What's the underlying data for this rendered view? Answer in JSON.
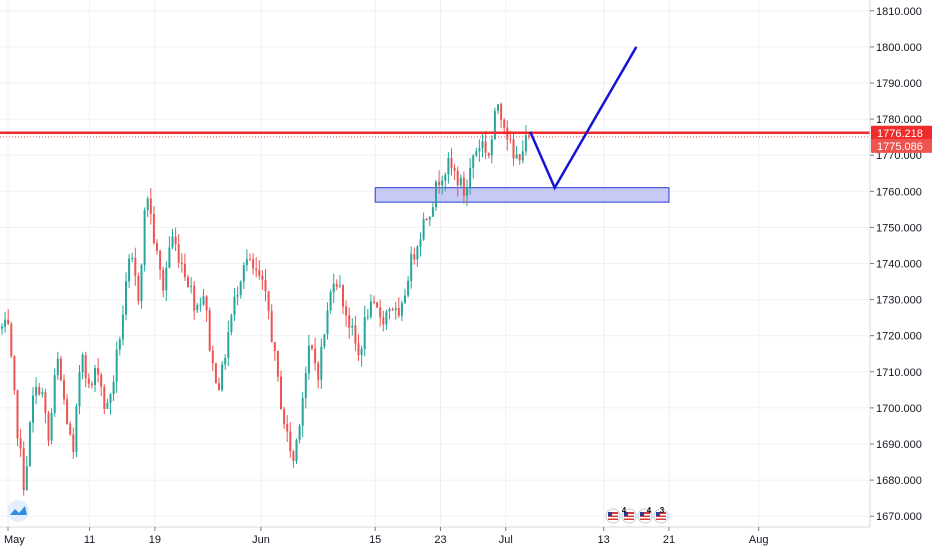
{
  "chart_data": {
    "type": "candlestick",
    "symbol": "",
    "xlim": [
      "2020-05-01",
      "2020-08-01"
    ],
    "ylim": [
      1667,
      1813
    ],
    "grid": true,
    "y_ticks": [
      1670,
      1680,
      1690,
      1700,
      1710,
      1720,
      1730,
      1740,
      1750,
      1760,
      1770,
      1780,
      1790,
      1800,
      1810
    ],
    "y_tick_labels": [
      "1670.000",
      "1680.000",
      "1690.000",
      "1700.000",
      "1710.000",
      "1720.000",
      "1730.000",
      "1740.000",
      "1750.000",
      "1760.000",
      "1770.000",
      "1780.000",
      "1790.000",
      "1800.000",
      "1810.000"
    ],
    "x_ticks": [
      "2020-05-01",
      "2020-05-11",
      "2020-05-19",
      "2020-06-01",
      "2020-06-15",
      "2020-06-23",
      "2020-07-01",
      "2020-07-13",
      "2020-07-21",
      "2020-08-01"
    ],
    "x_tick_labels": [
      "May",
      "11",
      "19",
      "Jun",
      "15",
      "23",
      "Jul",
      "13",
      "21",
      "Aug"
    ],
    "up_color": "#26a69a",
    "down_color": "#ef5350",
    "shape_points": [
      [
        "2020-05-01",
        1722
      ],
      [
        "2020-05-02",
        1697
      ],
      [
        "2020-05-03",
        1678
      ],
      [
        "2020-05-04",
        1702
      ],
      [
        "2020-05-05",
        1707
      ],
      [
        "2020-05-06",
        1690
      ],
      [
        "2020-05-07",
        1714
      ],
      [
        "2020-05-08",
        1700
      ],
      [
        "2020-05-09",
        1686
      ],
      [
        "2020-05-10",
        1718
      ],
      [
        "2020-05-11",
        1704
      ],
      [
        "2020-05-12",
        1712
      ],
      [
        "2020-05-13",
        1698
      ],
      [
        "2020-05-14",
        1709
      ],
      [
        "2020-05-15",
        1725
      ],
      [
        "2020-05-16",
        1742
      ],
      [
        "2020-05-17",
        1731
      ],
      [
        "2020-05-18",
        1761
      ],
      [
        "2020-05-19",
        1745
      ],
      [
        "2020-05-20",
        1733
      ],
      [
        "2020-05-21",
        1748
      ],
      [
        "2020-05-22",
        1742
      ],
      [
        "2020-05-23",
        1736
      ],
      [
        "2020-05-24",
        1728
      ],
      [
        "2020-05-25",
        1732
      ],
      [
        "2020-05-26",
        1712
      ],
      [
        "2020-05-27",
        1706
      ],
      [
        "2020-05-28",
        1721
      ],
      [
        "2020-05-29",
        1732
      ],
      [
        "2020-05-30",
        1742
      ],
      [
        "2020-05-31",
        1738
      ],
      [
        "2020-06-01",
        1735
      ],
      [
        "2020-06-02",
        1726
      ],
      [
        "2020-06-03",
        1708
      ],
      [
        "2020-06-04",
        1694
      ],
      [
        "2020-06-05",
        1685
      ],
      [
        "2020-06-06",
        1702
      ],
      [
        "2020-06-07",
        1717
      ],
      [
        "2020-06-08",
        1710
      ],
      [
        "2020-06-09",
        1724
      ],
      [
        "2020-06-10",
        1738
      ],
      [
        "2020-06-11",
        1730
      ],
      [
        "2020-06-12",
        1722
      ],
      [
        "2020-06-13",
        1714
      ],
      [
        "2020-06-14",
        1727
      ],
      [
        "2020-06-15",
        1727
      ],
      [
        "2020-06-16",
        1725
      ],
      [
        "2020-06-17",
        1729
      ],
      [
        "2020-06-18",
        1723
      ],
      [
        "2020-06-19",
        1737
      ],
      [
        "2020-06-20",
        1745
      ],
      [
        "2020-06-21",
        1752
      ],
      [
        "2020-06-22",
        1757
      ],
      [
        "2020-06-23",
        1765
      ],
      [
        "2020-06-24",
        1767
      ],
      [
        "2020-06-25",
        1764
      ],
      [
        "2020-06-26",
        1759
      ],
      [
        "2020-06-27",
        1770
      ],
      [
        "2020-06-28",
        1774
      ],
      [
        "2020-06-29",
        1770
      ],
      [
        "2020-06-30",
        1785
      ],
      [
        "2020-07-01",
        1778
      ],
      [
        "2020-07-02",
        1768
      ],
      [
        "2020-07-03",
        1772
      ],
      [
        "2020-07-04",
        1775
      ]
    ],
    "horizontal_line": {
      "value": 1776.218,
      "color": "#ef2b2b",
      "label": "1776.218"
    },
    "price_line": {
      "value": 1775.086,
      "color": "#ef5350",
      "label": "1775.086"
    },
    "support_zone": {
      "x_start": "2020-06-15",
      "x_end": "2020-07-21",
      "y_low": 1757,
      "y_high": 1761,
      "fill": "#b3b8f0",
      "stroke": "#2b3cd6"
    },
    "projection_path": {
      "color": "#1414d4",
      "points": [
        [
          "2020-07-04",
          1776.5
        ],
        [
          "2020-07-07",
          1761
        ],
        [
          "2020-07-17",
          1800
        ]
      ]
    },
    "event_markers": {
      "icons": [
        "us-flag-icon",
        "us-flag-icon",
        "us-flag-icon",
        "us-flag-icon"
      ],
      "badges": [
        "4",
        "4",
        "3"
      ]
    },
    "brand_logo": "tradingview-logo-icon"
  }
}
